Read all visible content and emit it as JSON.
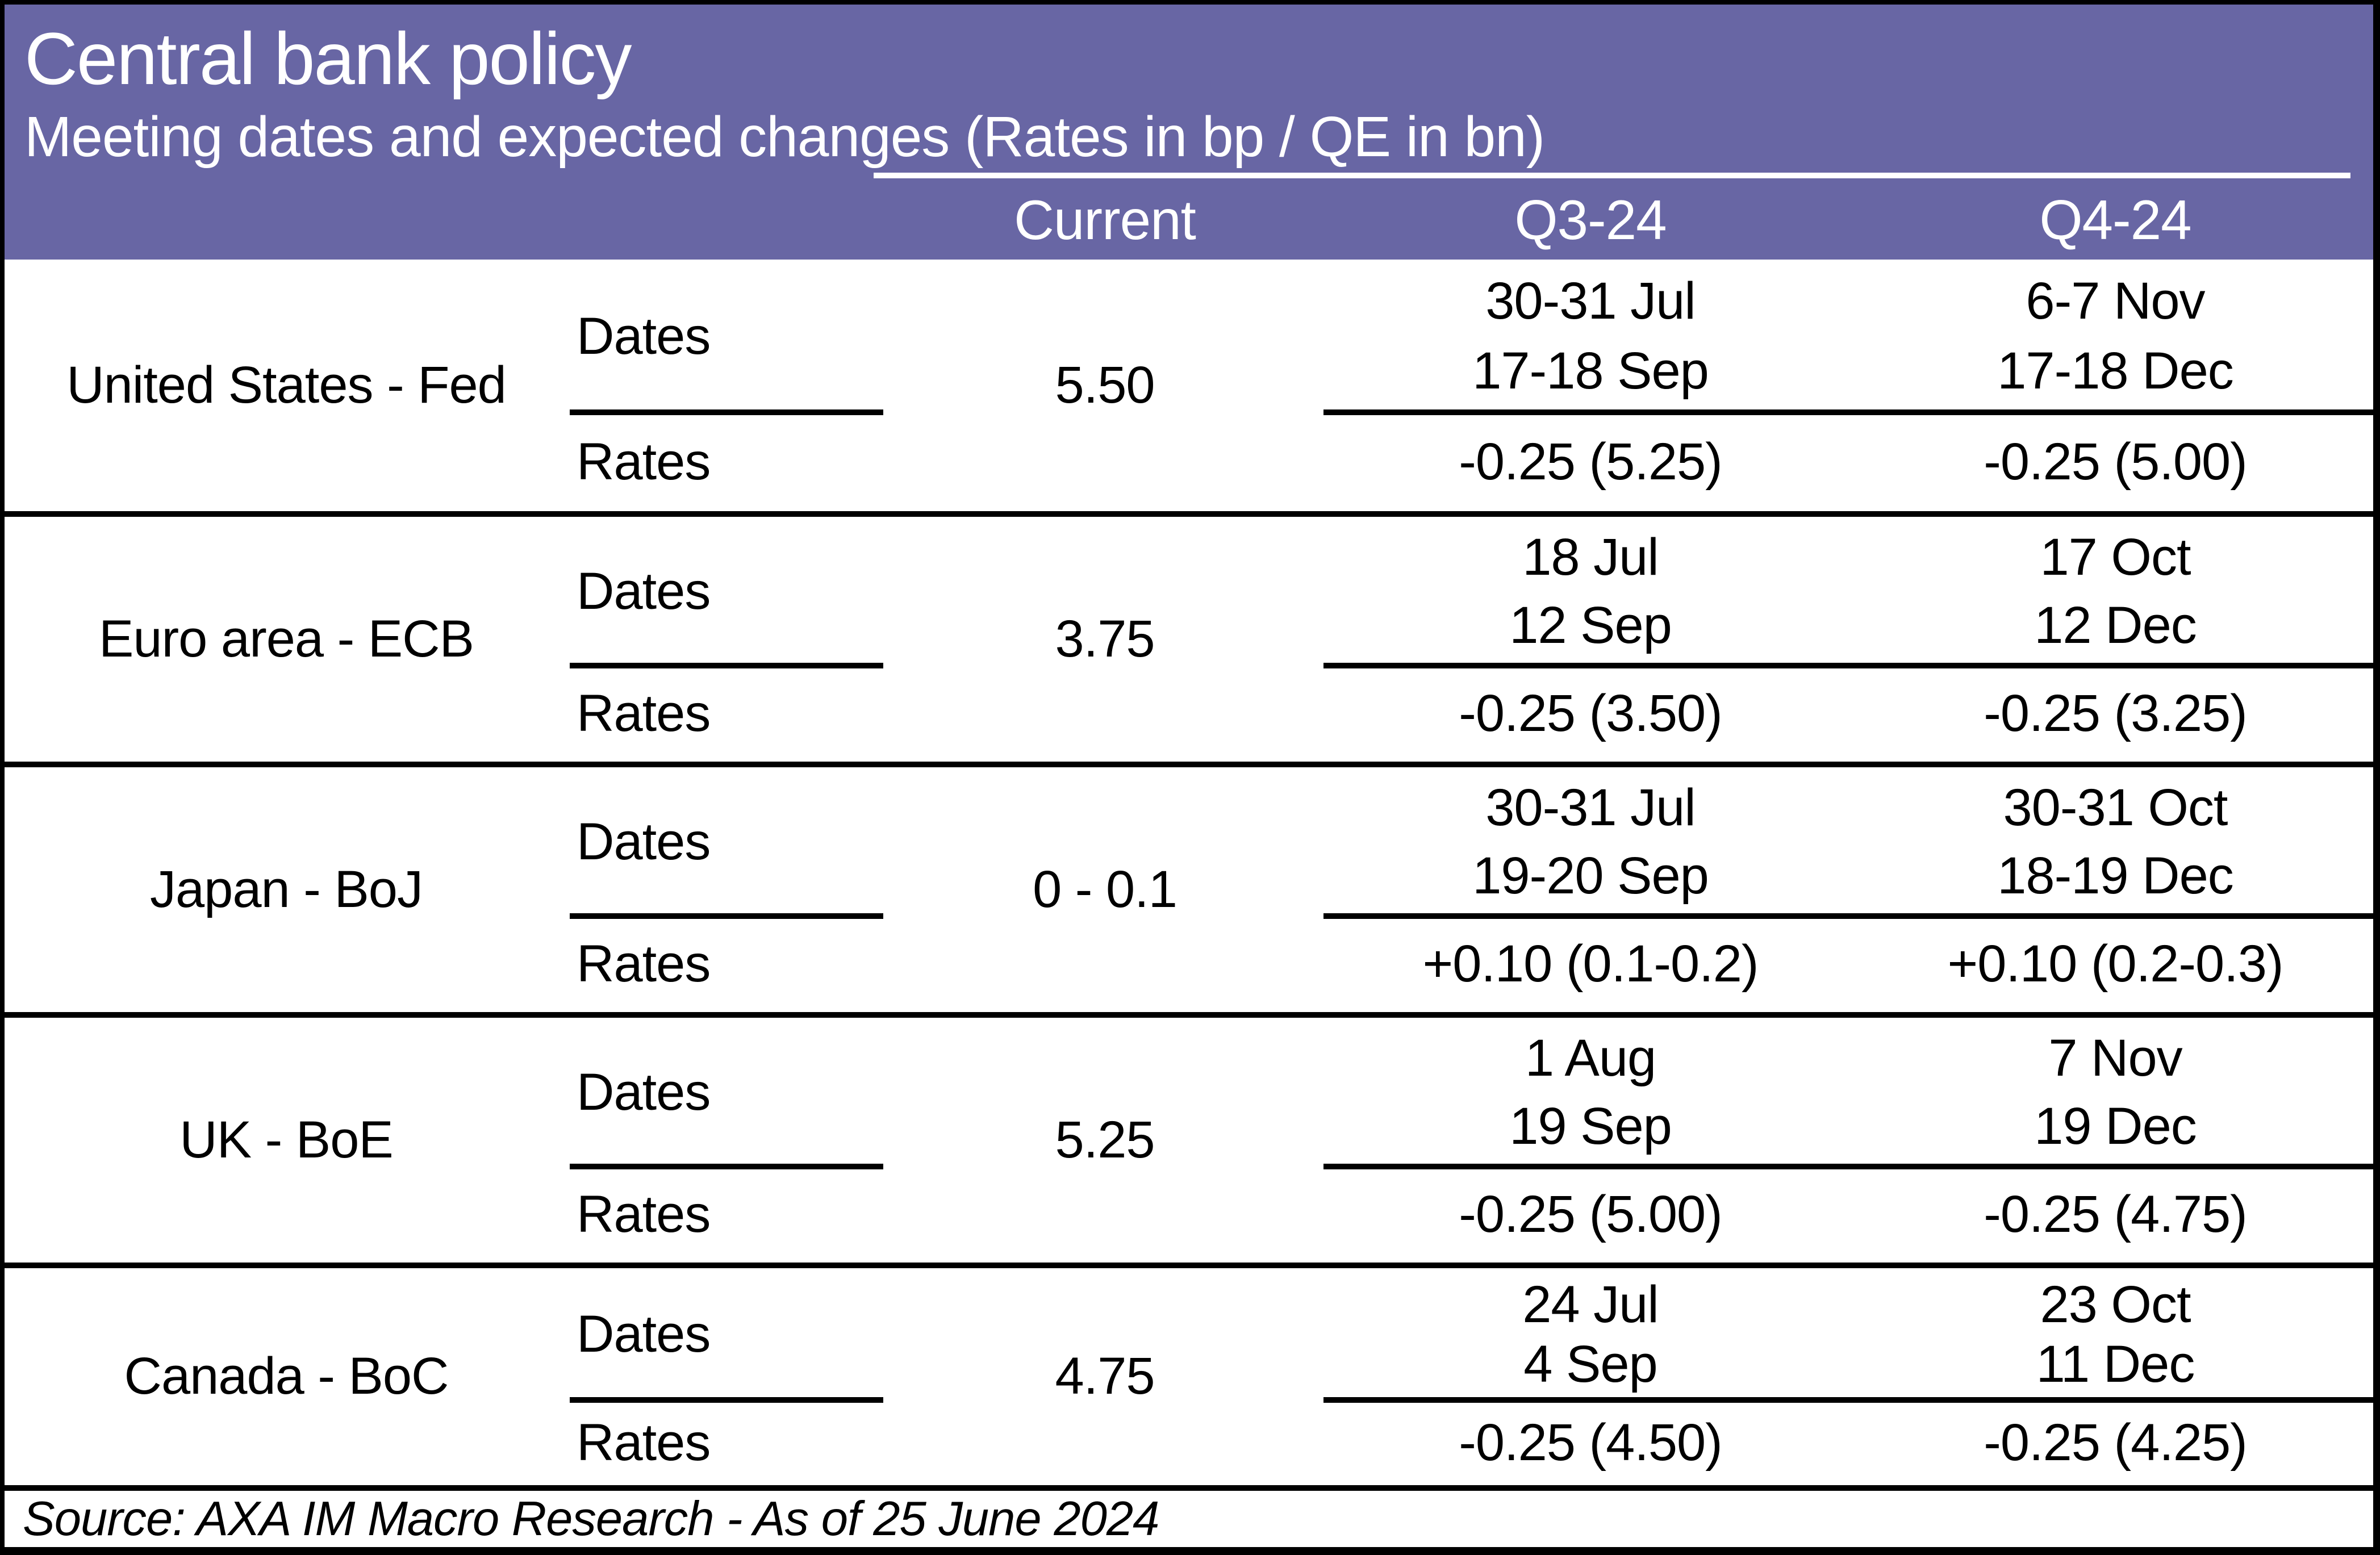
{
  "chart_data": {
    "type": "table",
    "title": "Central bank policy",
    "subtitle": "Meeting dates and expected changes (Rates in bp / QE in bn)",
    "column_headers": [
      "Current",
      "Q3-24",
      "Q4-24"
    ],
    "sub_row_labels": {
      "dates": "Dates",
      "rates": "Rates"
    },
    "rows": [
      {
        "name": "United States - Fed",
        "current": "5.50",
        "q3": {
          "dates": [
            "30-31 Jul",
            "17-18 Sep"
          ],
          "rate": "-0.25 (5.25)"
        },
        "q4": {
          "dates": [
            "6-7 Nov",
            "17-18 Dec"
          ],
          "rate": "-0.25 (5.00)"
        }
      },
      {
        "name": "Euro area - ECB",
        "current": "3.75",
        "q3": {
          "dates": [
            "18 Jul",
            "12 Sep"
          ],
          "rate": "-0.25 (3.50)"
        },
        "q4": {
          "dates": [
            "17 Oct",
            "12 Dec"
          ],
          "rate": "-0.25 (3.25)"
        }
      },
      {
        "name": "Japan - BoJ",
        "current": "0 - 0.1",
        "q3": {
          "dates": [
            "30-31 Jul",
            "19-20 Sep"
          ],
          "rate": "+0.10 (0.1-0.2)"
        },
        "q4": {
          "dates": [
            "30-31 Oct",
            "18-19 Dec"
          ],
          "rate": "+0.10 (0.2-0.3)"
        }
      },
      {
        "name": "UK - BoE",
        "current": "5.25",
        "q3": {
          "dates": [
            "1 Aug",
            "19 Sep"
          ],
          "rate": "-0.25 (5.00)"
        },
        "q4": {
          "dates": [
            "7 Nov",
            "19 Dec"
          ],
          "rate": "-0.25 (4.75)"
        }
      },
      {
        "name": "Canada - BoC",
        "current": "4.75",
        "q3": {
          "dates": [
            "24 Jul",
            "4 Sep"
          ],
          "rate": "-0.25 (4.50)"
        },
        "q4": {
          "dates": [
            "23 Oct",
            "11 Dec"
          ],
          "rate": "-0.25 (4.25)"
        }
      }
    ],
    "footer": "Source: AXA IM Macro Research - As of 25 June 2024"
  },
  "colors": {
    "header_purple": "#6866A4",
    "header_text": "#FFFFFF",
    "body_text": "#000000",
    "border": "#000000",
    "background": "#FFFFFF"
  }
}
